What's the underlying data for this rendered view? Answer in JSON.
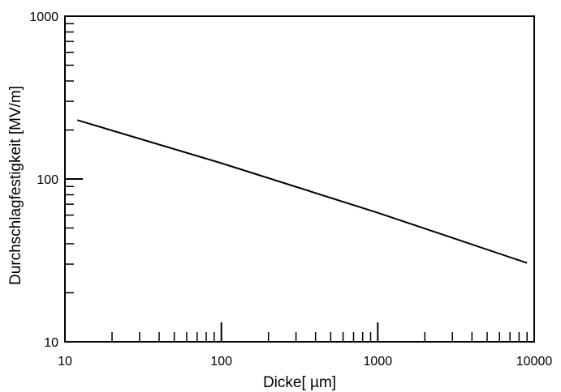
{
  "chart_data": {
    "type": "line",
    "x_scale": "log",
    "y_scale": "log",
    "xlim": [
      10,
      10000
    ],
    "ylim": [
      10,
      1000
    ],
    "x_ticks": [
      "10",
      "100",
      "1000",
      "10000"
    ],
    "y_ticks": [
      "10",
      "100",
      "1000"
    ],
    "xlabel": "Dicke[ µm]",
    "ylabel": "Durchschlagfestigkeit [MV/m]",
    "grid": false,
    "series": [
      {
        "x": [
          12,
          100,
          1000,
          9000
        ],
        "y": [
          230,
          125,
          62,
          30.5
        ],
        "color": "#000000"
      }
    ]
  }
}
